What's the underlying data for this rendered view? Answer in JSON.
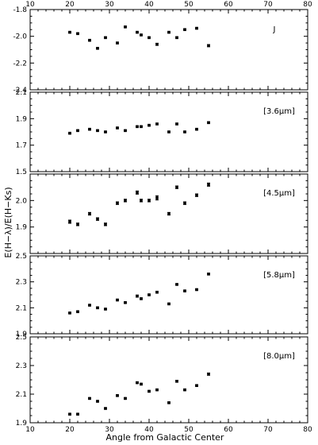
{
  "chart_data": {
    "type": "scatter",
    "xlabel": "Angle from Galactic Center",
    "ylabel": "E(H−λ)/E(H−Ks)",
    "xlim": [
      10,
      80
    ],
    "xticks": [
      10,
      20,
      30,
      40,
      50,
      60,
      70,
      80
    ],
    "x_tick_labels": [
      "10",
      "20",
      "30",
      "40",
      "50",
      "60",
      "70",
      "80"
    ],
    "x": [
      20,
      22,
      25,
      27,
      29,
      32,
      34,
      37,
      38,
      40,
      42,
      45,
      47,
      49,
      52,
      55
    ],
    "panels": [
      {
        "label": "J",
        "ylim": [
          -2.4,
          -1.8
        ],
        "yticks": [
          "-2.4",
          "-2.2",
          "-2.0",
          "-1.8"
        ],
        "values": [
          -1.97,
          -1.98,
          -2.03,
          -2.09,
          -2.01,
          -2.05,
          -1.93,
          -1.97,
          -1.99,
          -2.01,
          -2.06,
          -1.97,
          -2.01,
          -1.95,
          -1.94,
          -2.07
        ],
        "errors": [
          0.005,
          0.005,
          0.005,
          0.005,
          0.005,
          0.006,
          0.005,
          0.005,
          0.005,
          0.005,
          0.008,
          0.005,
          0.006,
          0.005,
          0.005,
          0.008
        ]
      },
      {
        "label": "[3.6μm]",
        "ylim": [
          1.5,
          2.1
        ],
        "yticks": [
          "1.5",
          "1.7",
          "1.9",
          "2.1"
        ],
        "values": [
          1.79,
          1.81,
          1.82,
          1.81,
          1.8,
          1.83,
          1.81,
          1.84,
          1.84,
          1.85,
          1.86,
          1.8,
          1.86,
          1.8,
          1.82,
          1.87
        ],
        "errors": [
          0.005,
          0.005,
          0.005,
          0.005,
          0.005,
          0.005,
          0.005,
          0.005,
          0.005,
          0.005,
          0.006,
          0.005,
          0.006,
          0.005,
          0.005,
          0.006
        ]
      },
      {
        "label": "[4.5μm]",
        "ylim": [
          1.8,
          2.1
        ],
        "yticks": [
          "1.9",
          "2.0"
        ],
        "values": [
          1.92,
          1.91,
          1.95,
          1.93,
          1.91,
          1.99,
          2.0,
          2.03,
          2.0,
          2.0,
          2.01,
          1.95,
          2.05,
          1.99,
          2.02,
          2.06
        ],
        "errors": [
          0.006,
          0.005,
          0.005,
          0.005,
          0.005,
          0.005,
          0.005,
          0.006,
          0.005,
          0.005,
          0.008,
          0.005,
          0.005,
          0.005,
          0.005,
          0.006
        ]
      },
      {
        "label": "[5.8μm]",
        "ylim": [
          1.9,
          2.5
        ],
        "yticks": [
          "1.9",
          "2.1",
          "2.3",
          "2.5"
        ],
        "values": [
          2.06,
          2.07,
          2.12,
          2.1,
          2.09,
          2.16,
          2.14,
          2.19,
          2.17,
          2.2,
          2.22,
          2.13,
          2.28,
          2.23,
          2.24,
          2.36
        ],
        "errors": [
          0.005,
          0.005,
          0.005,
          0.006,
          0.005,
          0.005,
          0.005,
          0.008,
          0.006,
          0.005,
          0.006,
          0.005,
          0.005,
          0.005,
          0.005,
          0.006
        ]
      },
      {
        "label": "[8.0μm]",
        "ylim": [
          1.9,
          2.5
        ],
        "yticks": [
          "1.9",
          "2.1",
          "2.3",
          "2.5"
        ],
        "values": [
          1.96,
          1.96,
          2.07,
          2.05,
          2.0,
          2.09,
          2.07,
          2.18,
          2.17,
          2.12,
          2.13,
          2.04,
          2.19,
          2.13,
          2.16,
          2.24
        ],
        "errors": [
          0.005,
          0.005,
          0.005,
          0.005,
          0.005,
          0.005,
          0.005,
          0.005,
          0.005,
          0.005,
          0.005,
          0.005,
          0.006,
          0.005,
          0.005,
          0.008
        ]
      }
    ]
  }
}
